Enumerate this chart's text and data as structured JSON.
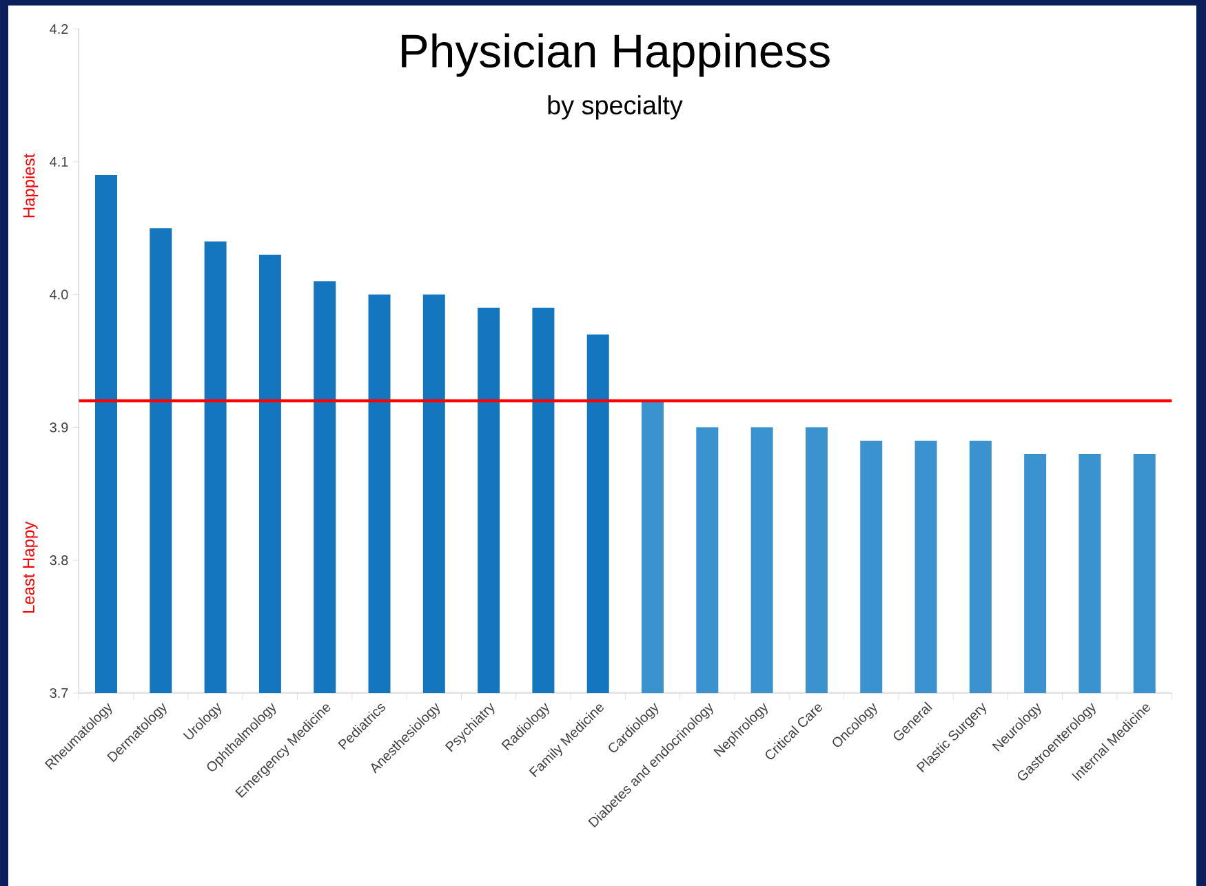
{
  "chart_data": {
    "type": "bar",
    "title": "Physician Happiness",
    "subtitle": "by specialty",
    "categories": [
      "Rheumatology",
      "Dermatology",
      "Urology",
      "Ophthalmology",
      "Emergency Medicine",
      "Pediatrics",
      "Anesthesiology",
      "Psychiatry",
      "Radiology",
      "Family Medicine",
      "Cardiology",
      "Diabetes and endocrinology",
      "Nephrology",
      "Critical Care",
      "Oncology",
      "General",
      "Plastic Surgery",
      "Neurology",
      "Gastroenterology",
      "Internal Medicine"
    ],
    "values": [
      4.09,
      4.05,
      4.04,
      4.03,
      4.01,
      4.0,
      4.0,
      3.99,
      3.99,
      3.97,
      3.92,
      3.9,
      3.9,
      3.9,
      3.89,
      3.89,
      3.89,
      3.88,
      3.88,
      3.88
    ],
    "colors": [
      "#1576c0",
      "#1576c0",
      "#1576c0",
      "#1576c0",
      "#1576c0",
      "#1576c0",
      "#1576c0",
      "#1576c0",
      "#1576c0",
      "#1576c0",
      "#3a92cf",
      "#3a92cf",
      "#3a92cf",
      "#3a92cf",
      "#3a92cf",
      "#3a92cf",
      "#3a92cf",
      "#3a92cf",
      "#3a92cf",
      "#3a92cf"
    ],
    "ylim": [
      3.7,
      4.2
    ],
    "yticks": [
      3.7,
      3.8,
      3.9,
      {
        "value": 4.0,
        "label": "4.0"
      },
      4.1,
      4.2
    ],
    "ref_lines": [
      {
        "axis": "y",
        "value": 3.92,
        "color": "#ff0000"
      }
    ],
    "annotations": [
      "Happiest",
      "Least Happy"
    ],
    "grid": false
  }
}
